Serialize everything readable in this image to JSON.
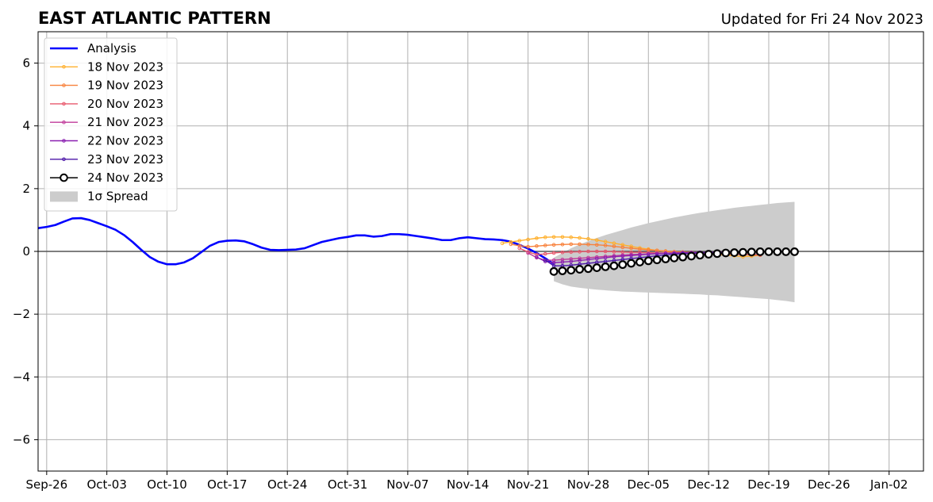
{
  "chart_data": {
    "type": "line",
    "title": "EAST ATLANTIC PATTERN",
    "subtitle": "Updated for Fri 24 Nov 2023",
    "xlabel": "",
    "ylabel": "",
    "ylim": [
      -7,
      7
    ],
    "xlim": [
      "2023-09-25",
      "2024-01-06"
    ],
    "grid": true,
    "legend_placement": "top-left",
    "y_ticks": [
      -6,
      -4,
      -2,
      0,
      2,
      4,
      6
    ],
    "y_tick_labels": [
      "−6",
      "−4",
      "−2",
      "0",
      "2",
      "4",
      "6"
    ],
    "x_ticks": [
      "2023-09-26",
      "2023-10-03",
      "2023-10-10",
      "2023-10-17",
      "2023-10-24",
      "2023-10-31",
      "2023-11-07",
      "2023-11-14",
      "2023-11-21",
      "2023-11-28",
      "2023-12-05",
      "2023-12-12",
      "2023-12-19",
      "2023-12-26",
      "2024-01-02"
    ],
    "x_tick_labels": [
      "Sep-26",
      "Oct-03",
      "Oct-10",
      "Oct-17",
      "Oct-24",
      "Oct-31",
      "Nov-07",
      "Nov-14",
      "Nov-21",
      "Nov-28",
      "Dec-05",
      "Dec-12",
      "Dec-19",
      "Dec-26",
      "Jan-02"
    ],
    "analysis": {
      "name": "Analysis",
      "color": "#0000ff",
      "start_date": "2023-09-25",
      "values": [
        0.74,
        0.78,
        0.84,
        0.95,
        1.05,
        1.06,
        1.0,
        0.9,
        0.8,
        0.69,
        0.52,
        0.3,
        0.05,
        -0.18,
        -0.33,
        -0.41,
        -0.41,
        -0.35,
        -0.22,
        -0.02,
        0.18,
        0.3,
        0.34,
        0.35,
        0.32,
        0.23,
        0.12,
        0.05,
        0.04,
        0.05,
        0.06,
        0.1,
        0.2,
        0.3,
        0.36,
        0.42,
        0.46,
        0.51,
        0.51,
        0.47,
        0.49,
        0.55,
        0.55,
        0.53,
        0.49,
        0.45,
        0.41,
        0.36,
        0.36,
        0.42,
        0.45,
        0.42,
        0.39,
        0.38,
        0.36,
        0.31,
        0.21,
        0.09,
        -0.05,
        -0.22,
        -0.4
      ]
    },
    "forecasts": [
      {
        "name": "18 Nov 2023",
        "color": "#ffb02e",
        "start_date": "2023-11-18",
        "values": [
          0.26,
          0.3,
          0.34,
          0.38,
          0.42,
          0.45,
          0.46,
          0.46,
          0.45,
          0.43,
          0.4,
          0.36,
          0.31,
          0.26,
          0.21,
          0.16,
          0.11,
          0.07,
          0.03,
          0.0,
          -0.03,
          -0.05,
          -0.07,
          -0.08,
          -0.09,
          -0.1,
          -0.12,
          -0.14,
          -0.17,
          -0.15,
          -0.12
        ]
      },
      {
        "name": "19 Nov 2023",
        "color": "#f8813b",
        "start_date": "2023-11-19",
        "values": [
          0.23,
          0.18,
          0.15,
          0.17,
          0.19,
          0.21,
          0.22,
          0.23,
          0.23,
          0.22,
          0.21,
          0.19,
          0.16,
          0.13,
          0.1,
          0.07,
          0.05,
          0.03,
          0.01,
          -0.01,
          -0.02,
          -0.03,
          -0.04,
          -0.05,
          -0.06,
          -0.07,
          -0.08,
          -0.1,
          -0.11,
          -0.12
        ]
      },
      {
        "name": "20 Nov 2023",
        "color": "#e8586c",
        "start_date": "2023-11-20",
        "values": [
          0.1,
          -0.02,
          -0.1,
          -0.08,
          -0.05,
          -0.03,
          -0.02,
          -0.01,
          0.0,
          0.0,
          0.0,
          -0.01,
          -0.02,
          -0.03,
          -0.03,
          -0.04,
          -0.05,
          -0.05,
          -0.06,
          -0.06,
          -0.07,
          -0.07,
          -0.08,
          -0.08,
          -0.09,
          -0.09,
          -0.1,
          -0.1,
          -0.11
        ]
      },
      {
        "name": "21 Nov 2023",
        "color": "#c03a9a",
        "start_date": "2023-11-21",
        "values": [
          -0.05,
          -0.2,
          -0.28,
          -0.28,
          -0.26,
          -0.24,
          -0.22,
          -0.2,
          -0.18,
          -0.16,
          -0.14,
          -0.12,
          -0.1,
          -0.09,
          -0.08,
          -0.07,
          -0.06,
          -0.05,
          -0.05,
          -0.04,
          -0.04,
          -0.03,
          -0.03,
          -0.03,
          -0.03,
          -0.02,
          -0.02,
          -0.02
        ]
      },
      {
        "name": "22 Nov 2023",
        "color": "#8a1fb0",
        "start_date": "2023-11-22",
        "values": [
          -0.18,
          -0.32,
          -0.36,
          -0.34,
          -0.32,
          -0.29,
          -0.26,
          -0.23,
          -0.2,
          -0.17,
          -0.15,
          -0.13,
          -0.11,
          -0.09,
          -0.07,
          -0.06,
          -0.05,
          -0.04,
          -0.04,
          -0.03,
          -0.03,
          -0.02,
          -0.02,
          -0.02,
          -0.02,
          -0.02,
          -0.02
        ]
      },
      {
        "name": "23 Nov 2023",
        "color": "#4c16a8",
        "start_date": "2023-11-23",
        "values": [
          -0.28,
          -0.46,
          -0.46,
          -0.44,
          -0.41,
          -0.38,
          -0.35,
          -0.32,
          -0.29,
          -0.26,
          -0.23,
          -0.2,
          -0.17,
          -0.14,
          -0.11,
          -0.09,
          -0.07,
          -0.06,
          -0.05,
          -0.04,
          -0.03,
          -0.03,
          -0.02,
          -0.02,
          -0.02,
          -0.02
        ]
      }
    ],
    "current": {
      "name": "24 Nov 2023",
      "color": "#000000",
      "start_date": "2023-11-24",
      "values": [
        -0.64,
        -0.62,
        -0.6,
        -0.57,
        -0.55,
        -0.52,
        -0.49,
        -0.46,
        -0.42,
        -0.38,
        -0.34,
        -0.3,
        -0.27,
        -0.24,
        -0.21,
        -0.18,
        -0.15,
        -0.12,
        -0.09,
        -0.07,
        -0.05,
        -0.04,
        -0.03,
        -0.02,
        -0.01,
        -0.01,
        -0.01,
        -0.01,
        -0.01
      ]
    },
    "spread": {
      "name": "1σ Spread",
      "color": "#cccccc",
      "start_date": "2023-11-24",
      "upper": [
        -0.2,
        -0.05,
        0.1,
        0.22,
        0.33,
        0.43,
        0.52,
        0.6,
        0.68,
        0.76,
        0.83,
        0.9,
        0.96,
        1.02,
        1.08,
        1.13,
        1.18,
        1.23,
        1.27,
        1.31,
        1.35,
        1.39,
        1.42,
        1.45,
        1.48,
        1.51,
        1.54,
        1.56,
        1.58
      ],
      "lower": [
        -0.95,
        -1.05,
        -1.12,
        -1.16,
        -1.19,
        -1.22,
        -1.24,
        -1.26,
        -1.28,
        -1.29,
        -1.3,
        -1.31,
        -1.32,
        -1.33,
        -1.34,
        -1.35,
        -1.36,
        -1.37,
        -1.39,
        -1.4,
        -1.42,
        -1.44,
        -1.46,
        -1.48,
        -1.5,
        -1.52,
        -1.55,
        -1.58,
        -1.62
      ]
    }
  }
}
